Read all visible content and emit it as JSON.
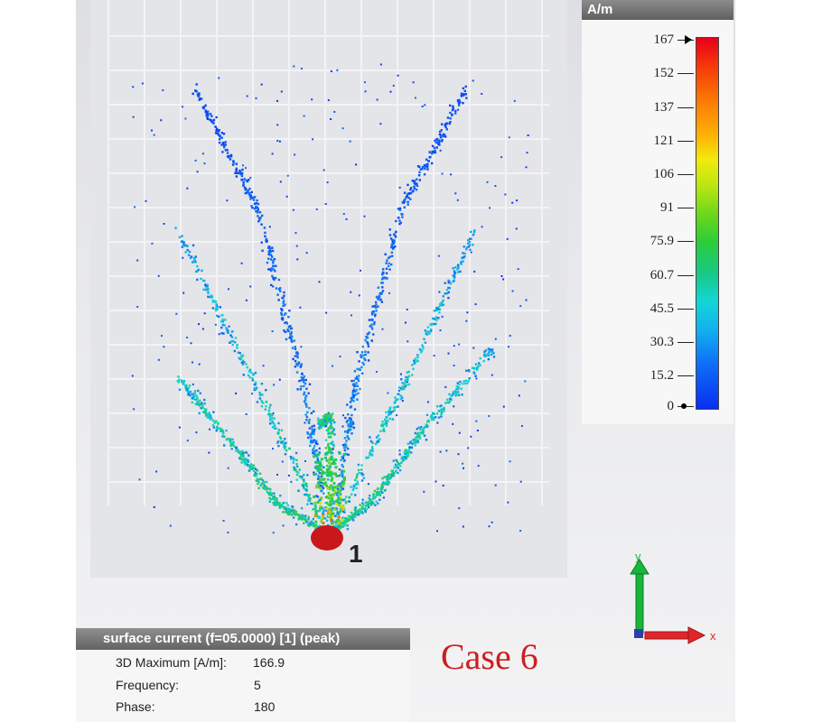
{
  "legend": {
    "unit": "A/m",
    "ticks": [
      "167",
      "152",
      "137",
      "121",
      "106",
      "91",
      "75.9",
      "60.7",
      "45.5",
      "30.3",
      "15.2",
      "0"
    ],
    "scale": {
      "min": 0,
      "max": 167
    }
  },
  "info_panel": {
    "title": "surface current (f=05.0000) [1] (peak)",
    "rows": [
      {
        "label": "3D Maximum [A/m]:",
        "value": "166.9"
      },
      {
        "label": "Frequency:",
        "value": "5"
      },
      {
        "label": "Phase:",
        "value": "180"
      }
    ]
  },
  "port": {
    "label": "1",
    "color": "#c8181b"
  },
  "case_label": "Case 6",
  "axes": {
    "y_label": "y",
    "x_label": "x",
    "y_color": "#18b63b",
    "x_color": "#e0262a"
  },
  "colors": {
    "grid": "#f3f3f5",
    "substrate": "#e4e5e8"
  }
}
